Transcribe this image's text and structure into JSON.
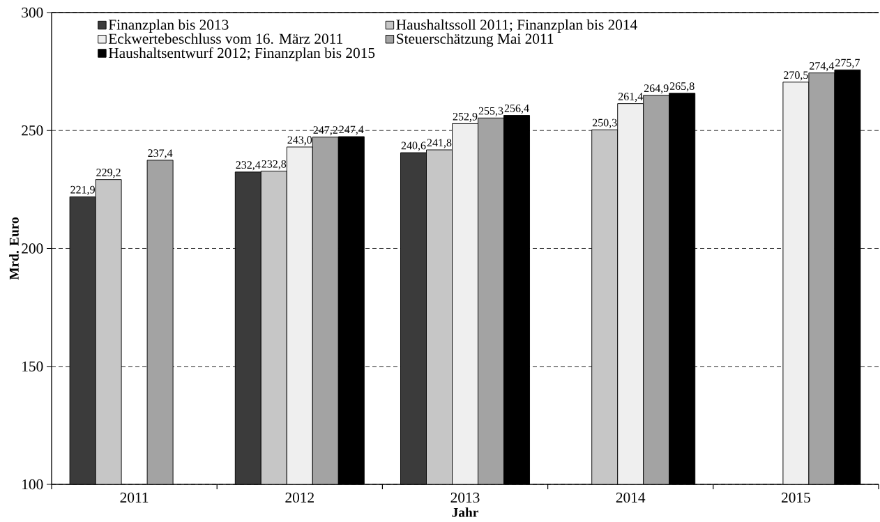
{
  "chart_data": {
    "type": "bar",
    "xlabel": "Jahr",
    "ylabel": "Mrd. Euro",
    "categories": [
      "2011",
      "2012",
      "2013",
      "2014",
      "2015"
    ],
    "ylim": [
      100,
      300
    ],
    "yticks": [
      100,
      150,
      200,
      250,
      300
    ],
    "grid": "y",
    "legend": "top left",
    "series": [
      {
        "name": "Finanzplan bis 2013",
        "color": "#3b3b3b",
        "values": [
          221.9,
          232.4,
          240.6,
          null,
          null
        ],
        "value_labels": [
          "221,9",
          "232,4",
          "240,6",
          null,
          null
        ]
      },
      {
        "name": "Haushaltssoll 2011; Finanzplan bis 2014",
        "color": "#c6c6c6",
        "values": [
          229.2,
          232.8,
          241.8,
          250.3,
          null
        ],
        "value_labels": [
          "229,2",
          "232,8",
          "241,8",
          "250,3",
          null
        ]
      },
      {
        "name": "Eckwertebeschluss vom 16. März 2011",
        "color": "#efefef",
        "values": [
          null,
          243.0,
          252.9,
          261.4,
          270.5
        ],
        "value_labels": [
          null,
          "243,0",
          "252,9",
          "261,4",
          "270,5"
        ]
      },
      {
        "name": "Steuerschätzung Mai 2011",
        "color": "#a3a3a3",
        "values": [
          237.4,
          247.2,
          255.3,
          264.9,
          274.4
        ],
        "value_labels": [
          "237,4",
          "247,2",
          "255,3",
          "264,9",
          "274,4"
        ]
      },
      {
        "name": "Haushaltsentwurf 2012; Finanzplan bis 2015",
        "color": "#000000",
        "values": [
          null,
          247.4,
          256.4,
          265.8,
          275.7
        ],
        "value_labels": [
          null,
          "247,4",
          "256,4",
          "265,8",
          "275,7"
        ]
      }
    ]
  }
}
